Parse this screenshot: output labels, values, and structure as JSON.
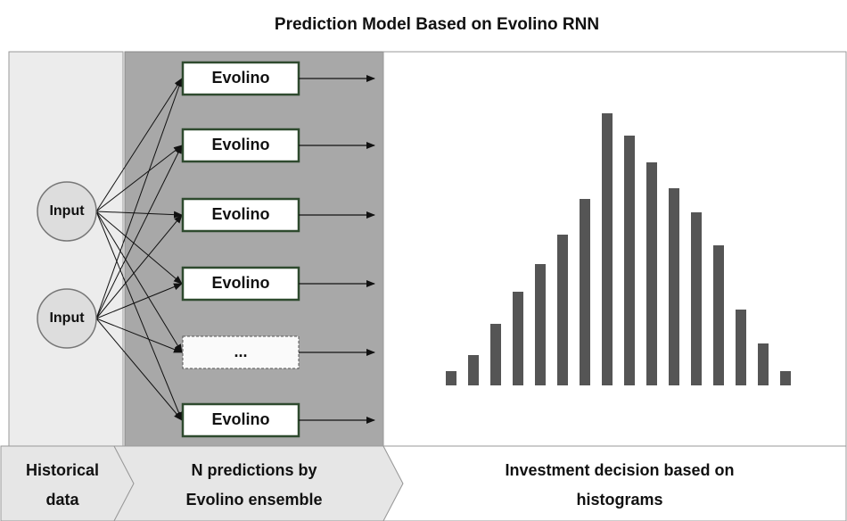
{
  "title": "Prediction Model Based on Evolino RNN",
  "inputs": [
    "Input",
    "Input"
  ],
  "models": [
    "Evolino",
    "Evolino",
    "Evolino",
    "Evolino",
    "...",
    "Evolino"
  ],
  "stages": [
    {
      "lines": [
        "Historical",
        "data"
      ]
    },
    {
      "lines": [
        "N predictions by",
        "Evolino ensemble"
      ]
    },
    {
      "lines": [
        "Investment decision based on",
        "histograms"
      ]
    }
  ]
}
